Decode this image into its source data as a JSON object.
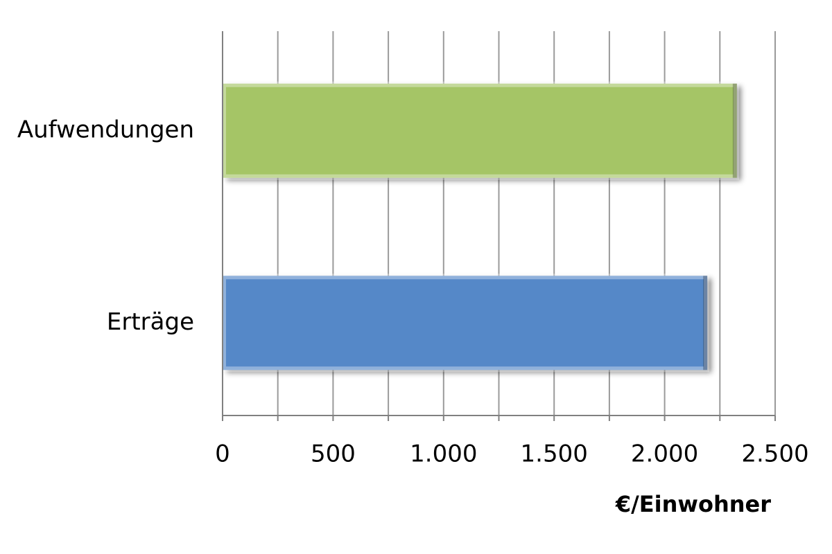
{
  "chart_data": {
    "type": "bar",
    "orientation": "horizontal",
    "categories": [
      "Aufwendungen",
      "Erträge"
    ],
    "values": [
      2327,
      2193
    ],
    "colors": [
      "#a5c566",
      "#5588c8"
    ],
    "xlabel": "€/Einwohner",
    "xlim": [
      0,
      2500
    ],
    "xticks": [
      0,
      500,
      {
        "value": 1000,
        "label": "1.000"
      },
      {
        "value": 1500,
        "label": "1.500"
      },
      {
        "value": 2000,
        "label": "2.000"
      },
      {
        "value": 2500,
        "label": "2.500"
      }
    ],
    "xminorticks": [
      250,
      750,
      1250,
      1750,
      2250
    ],
    "grid": true
  }
}
